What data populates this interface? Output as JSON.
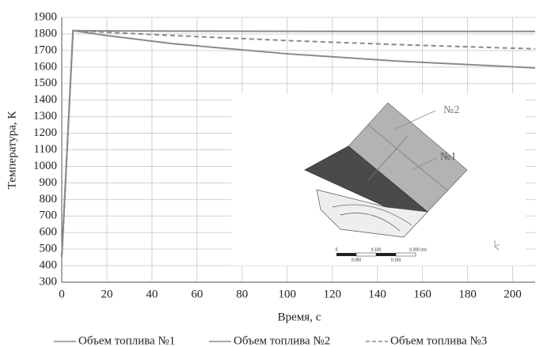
{
  "chart_data": {
    "type": "line",
    "xlabel": "Время, с",
    "ylabel": "Температура, К",
    "x": [
      0,
      5,
      20,
      50,
      100,
      150,
      210
    ],
    "series": [
      {
        "name": "Объем топлива №1",
        "color": "#8a8a8a",
        "dashed": false,
        "values": [
          450,
          1820,
          1790,
          1740,
          1680,
          1635,
          1595
        ]
      },
      {
        "name": "Объем топлива №2",
        "color": "#8a8a8a",
        "dashed": false,
        "values": [
          450,
          1820,
          1818,
          1817,
          1816,
          1815,
          1815
        ]
      },
      {
        "name": "Объем топлива №3",
        "color": "#8a8a8a",
        "dashed": true,
        "values": [
          450,
          1820,
          1810,
          1790,
          1760,
          1735,
          1710
        ]
      }
    ],
    "xlim": [
      0,
      210
    ],
    "xticks": [
      0,
      20,
      40,
      60,
      80,
      100,
      120,
      140,
      160,
      180,
      200
    ],
    "ylim": [
      300,
      1900
    ],
    "yticks": [
      300,
      400,
      500,
      600,
      700,
      800,
      900,
      1000,
      1100,
      1200,
      1300,
      1400,
      1500,
      1600,
      1700,
      1800,
      1900
    ],
    "grid": true,
    "inset": {
      "labels": [
        "№2",
        "№1"
      ],
      "scale": [
        "0",
        "0.100",
        "0.200 (m)",
        "0.050",
        "0.150"
      ]
    }
  }
}
